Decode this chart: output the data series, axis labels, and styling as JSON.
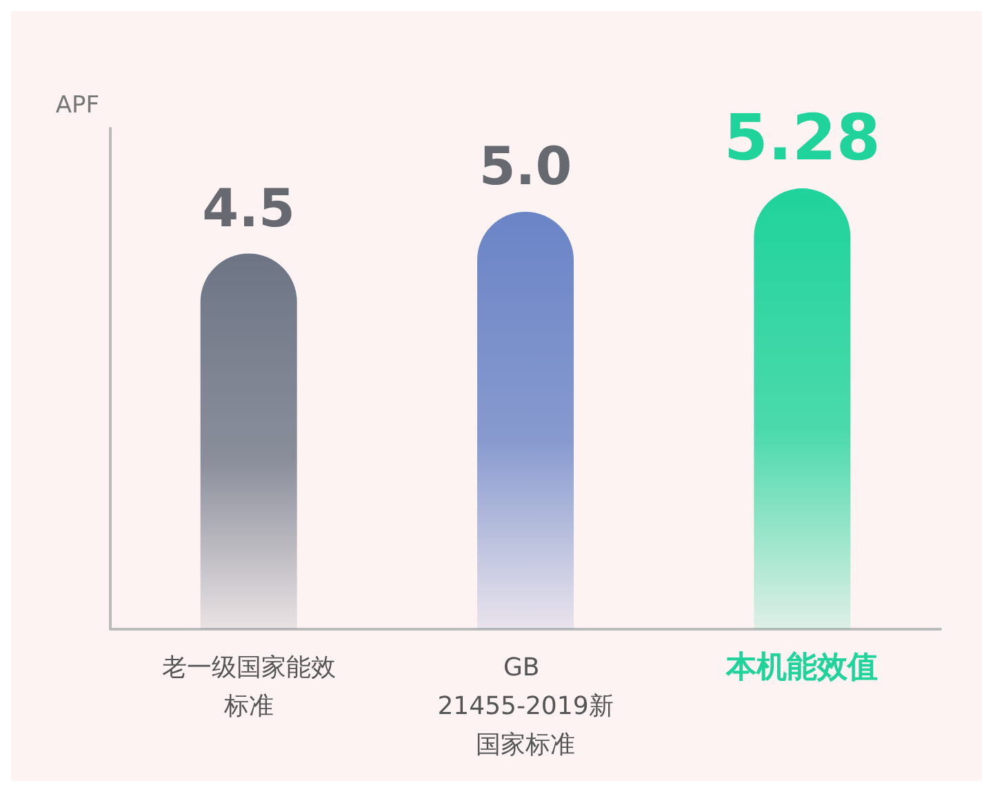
{
  "chart_data": {
    "type": "bar",
    "ylabel": "APF",
    "categories": [
      "老一级国家能效标准",
      "GB 21455-2019新国家标准",
      "本机能效值"
    ],
    "values": [
      4.5,
      5.0,
      5.28
    ],
    "colors": [
      "#6d7585",
      "#6a84c6",
      "#1fd39a"
    ],
    "value_labels": [
      "4.5",
      "5.0",
      "5.28"
    ],
    "grid": false
  }
}
